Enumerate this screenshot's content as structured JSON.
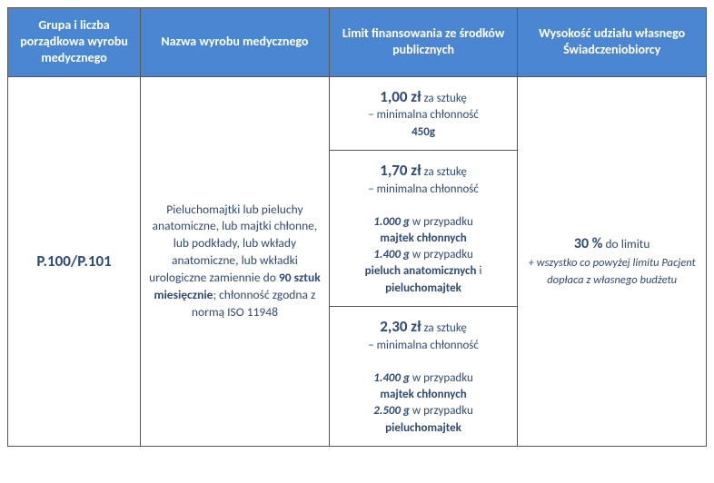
{
  "header": {
    "col1": "Grupa i liczba porządkowa wyrobu medycznego",
    "col2": "Nazwa wyrobu medycznego",
    "col3": "Limit finansowania ze środków publicznych",
    "col4": "Wysokość udziału własnego Świadczeniobiorcy"
  },
  "row": {
    "group_code": "P.100/P.101",
    "product": {
      "line1": "Pieluchomajtki lub pieluchy anatomiczne, lub majtki chłonne, lub podkłady, lub wkłady anatomiczne, lub wkładki urologiczne zamiennie do",
      "qty_bold": "90 sztuk miesięcznie",
      "line2": "; chłonność zgodna z normą ISO 11948"
    },
    "limits": {
      "tier1": {
        "price": "1,00 zł",
        "per": "za sztukę",
        "min_label": "– minimalna chłonność",
        "g": "450g"
      },
      "tier2": {
        "price": "1,70 zł",
        "per": "za sztukę",
        "min_label": "– minimalna chłonność",
        "g1": "1.000 g",
        "g1_case": "w przypadku",
        "g1_prod": "majtek chłonnych",
        "g2": "1.400 g",
        "g2_case": "w przypadku",
        "g2_prod1": "pieluch anatomicznych",
        "g2_and": "i",
        "g2_prod2": "pieluchomajtek"
      },
      "tier3": {
        "price": "2,30 zł",
        "per": "za sztukę",
        "min_label": "– minimalna chłonność",
        "g1": "1.400 g",
        "g1_case": "w przypadku",
        "g1_prod": "majtek chłonnych",
        "g2": "2.500 g",
        "g2_case": "w przypadku",
        "g2_prod": "pieluchomajtek"
      }
    },
    "share": {
      "main_pct": "30 %",
      "main_txt": "do limitu",
      "sub": "+ wszystko co powyżej limitu Pacjent dopłaca z własnego budżetu"
    }
  },
  "colors": {
    "header_bg": "#4a86d1",
    "text": "#2e4a7a",
    "border": "#555555",
    "bg": "#ffffff"
  }
}
